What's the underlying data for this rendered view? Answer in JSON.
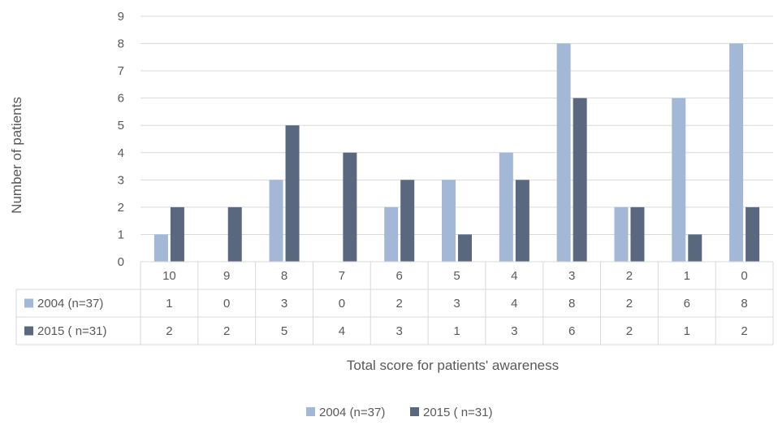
{
  "chart_data": {
    "type": "bar",
    "title": "",
    "xlabel": "Total score for patients' awareness",
    "ylabel": "Number of patients",
    "ylim": [
      0,
      9
    ],
    "yticks": [
      0,
      1,
      2,
      3,
      4,
      5,
      6,
      7,
      8,
      9
    ],
    "grid": true,
    "legend": "bottom",
    "categories": [
      "10",
      "9",
      "8",
      "7",
      "6",
      "5",
      "4",
      "3",
      "2",
      "1",
      "0"
    ],
    "series": [
      {
        "name": "2004 (n=37)",
        "color": "#a2b8d6",
        "values": [
          1,
          0,
          3,
          0,
          2,
          3,
          4,
          8,
          2,
          6,
          8
        ]
      },
      {
        "name": "2015 ( n=31)",
        "color": "#59677f",
        "values": [
          2,
          2,
          5,
          4,
          3,
          1,
          3,
          6,
          2,
          1,
          2
        ]
      }
    ],
    "data_table": true
  }
}
